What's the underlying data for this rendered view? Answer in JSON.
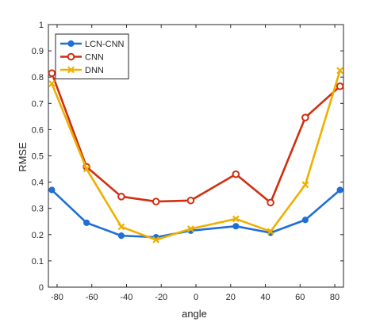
{
  "chart_data": {
    "type": "line",
    "xlabel": "angle",
    "ylabel": "RMSE",
    "xlim": [
      -85,
      85
    ],
    "ylim": [
      0,
      1
    ],
    "xticks": [
      -80,
      -60,
      -40,
      -20,
      0,
      20,
      40,
      60,
      80
    ],
    "xtick_labels": [
      "-80",
      "-60",
      "-40",
      "-20",
      "0",
      "20",
      "40",
      "60",
      "80"
    ],
    "yticks": [
      0,
      0.1,
      0.2,
      0.3,
      0.4,
      0.5,
      0.6,
      0.7,
      0.8,
      0.9,
      1
    ],
    "ytick_labels": [
      "0",
      "0.1",
      "0.2",
      "0.3",
      "0.4",
      "0.5",
      "0.6",
      "0.7",
      "0.8",
      "0.9",
      "1"
    ],
    "grid": false,
    "legend_position": "top-left",
    "x": [
      -83,
      -63,
      -43,
      -23,
      -3,
      23,
      43,
      63,
      83
    ],
    "series": [
      {
        "name": "LCN-CNN",
        "color": "#1f6fd6",
        "marker": "circle-filled",
        "values": [
          0.37,
          0.245,
          0.196,
          0.19,
          0.215,
          0.232,
          0.207,
          0.256,
          0.37
        ]
      },
      {
        "name": "CNN",
        "color": "#d12f12",
        "marker": "circle-open",
        "values": [
          0.815,
          0.458,
          0.345,
          0.326,
          0.33,
          0.43,
          0.322,
          0.646,
          0.765
        ]
      },
      {
        "name": "DNN",
        "color": "#eeb000",
        "marker": "x",
        "values": [
          0.775,
          0.45,
          0.23,
          0.18,
          0.222,
          0.26,
          0.212,
          0.39,
          0.825
        ]
      }
    ]
  }
}
